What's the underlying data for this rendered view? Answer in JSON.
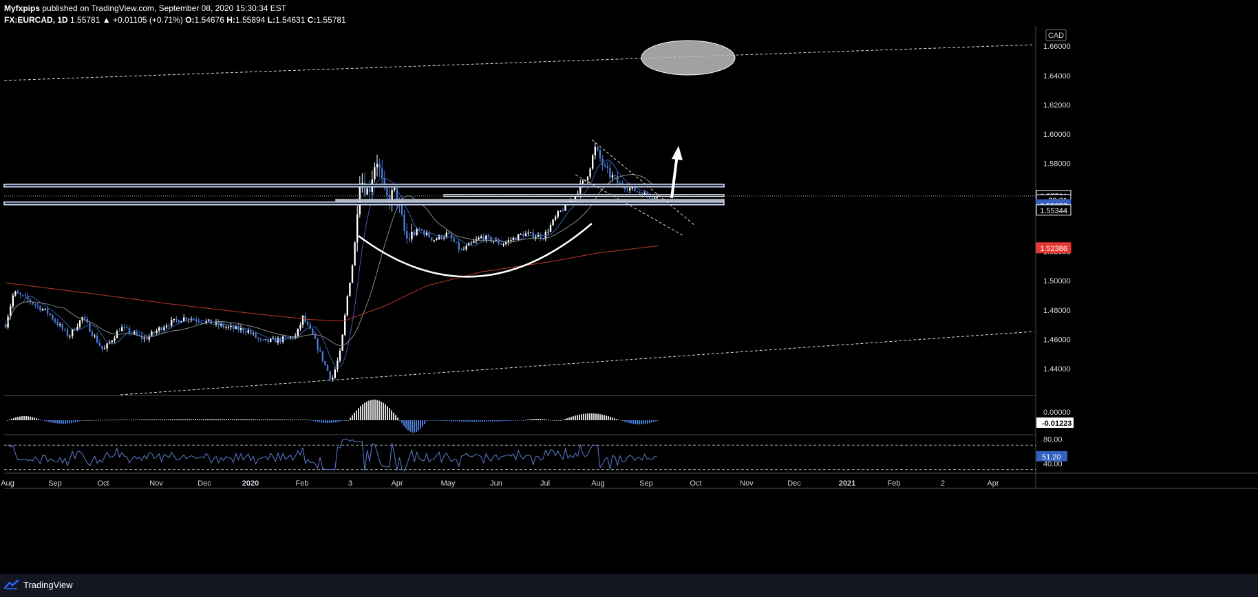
{
  "header": {
    "author": "Myfxpips",
    "published": "published on TradingView.com, September 08, 2020 15:30:34 EST",
    "symbol": "FX:EURCAD, 1D",
    "last": "1.55781",
    "arrow": "▲",
    "change": "+0.01105 (+0.71%)",
    "o_label": "O:",
    "o": "1.54676",
    "h_label": "H:",
    "h": "1.55894",
    "l_label": "L:",
    "l": "1.54631",
    "c_label": "C:",
    "c": "1.55781"
  },
  "footer": {
    "brand": "TradingView"
  },
  "colors": {
    "background": "#000000",
    "candle_up": "#ffffff",
    "candle_down": "#4a7bd6",
    "ma_fast": "#3a5fb0",
    "ma_mid": "#8a8a8a",
    "ma_slow": "#c0392b",
    "zone_border": "#5b7fd0",
    "price_tag_blue": "#3461c1",
    "price_tag_red": "#e53935",
    "grid_text": "#d1d4dc"
  },
  "chart_data": {
    "type": "candlestick",
    "currency": "CAD",
    "x_axis": {
      "labels": [
        "Aug",
        "Sep",
        "Oct",
        "Nov",
        "Dec",
        "2020",
        "Feb",
        "3",
        "Apr",
        "May",
        "Jun",
        "Jul",
        "Aug",
        "Sep",
        "Oct",
        "Nov",
        "Dec",
        "2021",
        "Feb",
        "2",
        "Apr"
      ],
      "bold": [
        "2020",
        "2021"
      ]
    },
    "y_axis": {
      "ticks": [
        "1.66000",
        "1.64000",
        "1.62000",
        "1.60000",
        "1.58000",
        "1.52000",
        "1.50000",
        "1.48000",
        "1.46000",
        "1.44000"
      ],
      "tick_values": [
        1.66,
        1.64,
        1.62,
        1.6,
        1.58,
        1.52,
        1.5,
        1.48,
        1.46,
        1.44
      ],
      "range": [
        1.43,
        1.67
      ]
    },
    "price_tags": [
      {
        "label": "1.55781",
        "value": 1.55781,
        "style": "outline"
      },
      {
        "label": "29:31",
        "value": 1.555,
        "style": "outline"
      },
      {
        "label": "1.55652",
        "value": 1.5515,
        "style": "blue"
      },
      {
        "label": "1.55344",
        "value": 1.548,
        "style": "outline"
      },
      {
        "label": "1.52386",
        "value": 1.5222,
        "style": "red"
      }
    ],
    "zones": [
      {
        "top": 1.5658,
        "bottom": 1.564,
        "x_from": 0.0,
        "x_to": 1052
      },
      {
        "top": 1.5537,
        "bottom": 1.5518,
        "x_from": 0.0,
        "x_to": 1052
      }
    ],
    "levels": [
      {
        "top": 1.5588,
        "bottom": 1.5575,
        "x_from": 645,
        "x_to": 1052
      },
      {
        "top": 1.5555,
        "bottom": 1.5545,
        "x_from": 488,
        "x_to": 1052
      }
    ],
    "macd": {
      "ticks": [
        "0.00000"
      ],
      "last_label": "-0.01223",
      "range": [
        -0.03,
        0.05
      ]
    },
    "rsi": {
      "ticks": [
        "80.00",
        "40.00"
      ],
      "tick_values": [
        80,
        40
      ],
      "last_label": "51.20",
      "last_value": 51.2,
      "bands": [
        70,
        30
      ],
      "range": [
        25,
        85
      ]
    }
  }
}
